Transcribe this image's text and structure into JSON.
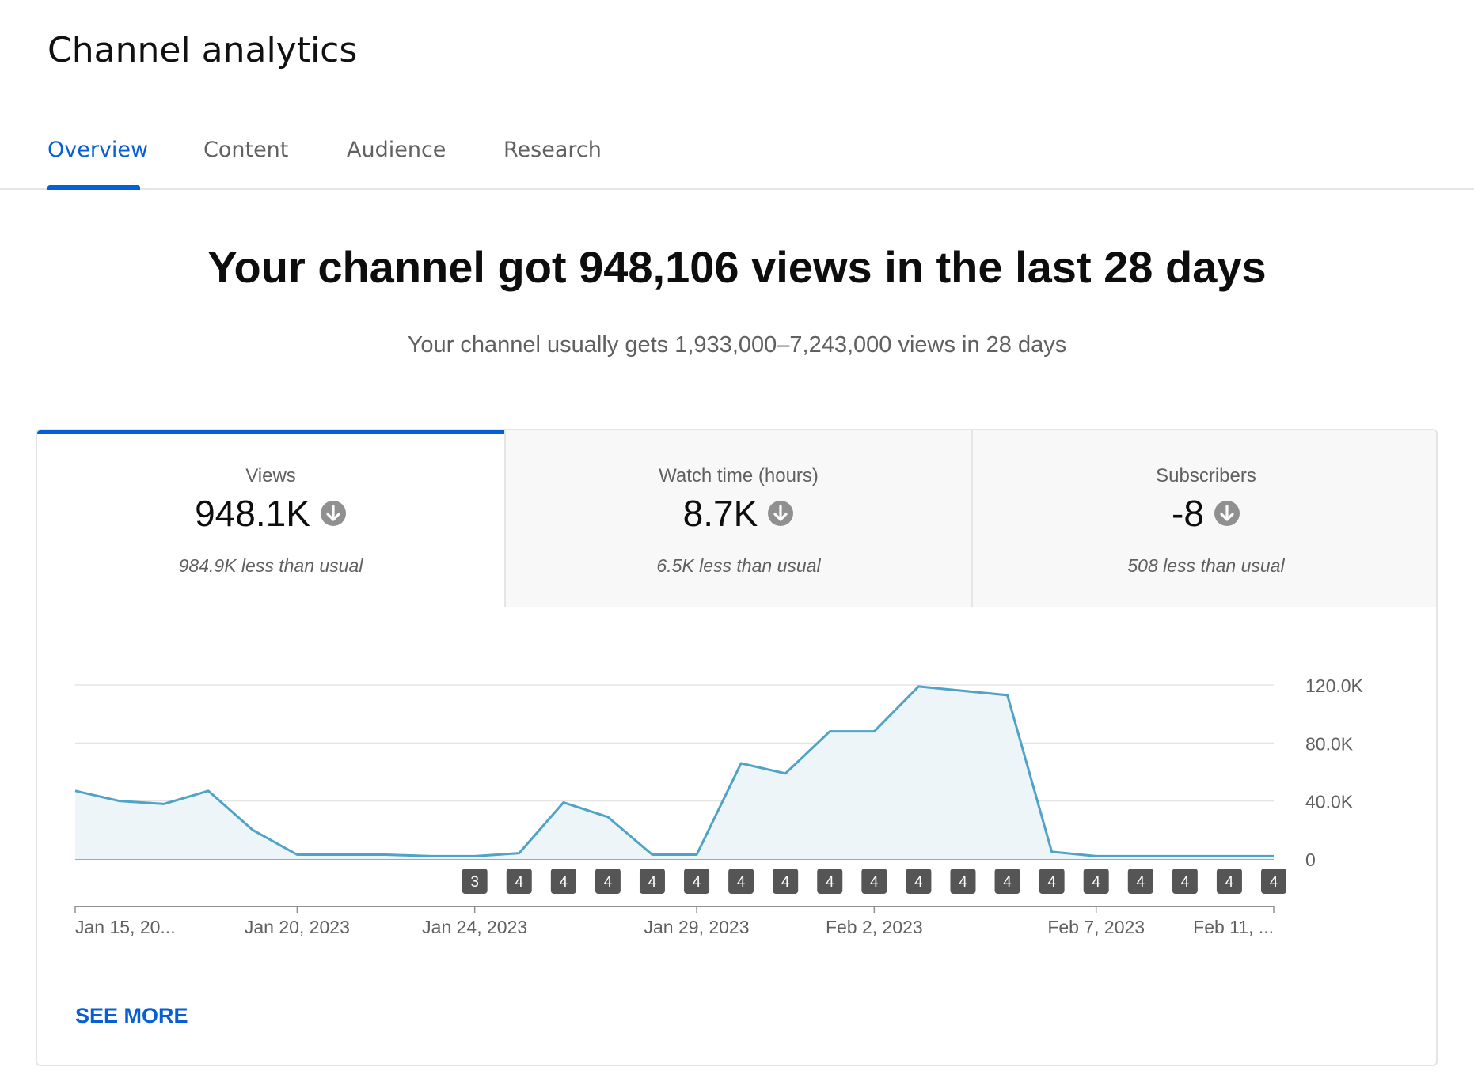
{
  "app": {
    "title": "Channel analytics"
  },
  "tabs": [
    {
      "label": "Overview",
      "active": true
    },
    {
      "label": "Content",
      "active": false
    },
    {
      "label": "Audience",
      "active": false
    },
    {
      "label": "Research",
      "active": false
    }
  ],
  "summary": {
    "headline": "Your channel got 948,106 views in the last 28 days",
    "subheadline": "Your channel usually gets 1,933,000–7,243,000 views in 28 days"
  },
  "metrics": [
    {
      "label": "Views",
      "value": "948.1K",
      "trend_icon": "arrow-down-circle-icon",
      "compare": "984.9K less than usual",
      "active": true
    },
    {
      "label": "Watch time (hours)",
      "value": "8.7K",
      "trend_icon": "arrow-down-circle-icon",
      "compare": "6.5K less than usual",
      "active": false
    },
    {
      "label": "Subscribers",
      "value": "-8",
      "trend_icon": "arrow-down-circle-icon",
      "compare": "508 less than usual",
      "active": false
    }
  ],
  "chart_data": {
    "type": "area",
    "series": [
      {
        "values": [
          47000,
          40000,
          38000,
          47000,
          20000,
          3000,
          3000,
          3000,
          2000,
          2000,
          4000,
          39000,
          29000,
          3000,
          3000,
          66000,
          59000,
          88000,
          88000,
          119000,
          116000,
          113000,
          5000,
          2000,
          2000,
          2000,
          2000,
          2000
        ]
      }
    ],
    "ylim": [
      0,
      120000
    ],
    "y_ticks": [
      "120.0K",
      "80.0K",
      "40.0K",
      "0"
    ],
    "y_tick_values": [
      120000,
      80000,
      40000,
      0
    ],
    "x_tick_labels": [
      {
        "index": 0,
        "label": "Jan 15, 20..."
      },
      {
        "index": 5,
        "label": "Jan 20, 2023"
      },
      {
        "index": 9,
        "label": "Jan 24, 2023"
      },
      {
        "index": 14,
        "label": "Jan 29, 2023"
      },
      {
        "index": 18,
        "label": "Feb 2, 2023"
      },
      {
        "index": 23,
        "label": "Feb 7, 2023"
      },
      {
        "index": 27,
        "label": "Feb 11, ..."
      }
    ],
    "markers": [
      {
        "index": 9,
        "label": "3"
      },
      {
        "index": 10,
        "label": "4"
      },
      {
        "index": 11,
        "label": "4"
      },
      {
        "index": 12,
        "label": "4"
      },
      {
        "index": 13,
        "label": "4"
      },
      {
        "index": 14,
        "label": "4"
      },
      {
        "index": 15,
        "label": "4"
      },
      {
        "index": 16,
        "label": "4"
      },
      {
        "index": 17,
        "label": "4"
      },
      {
        "index": 18,
        "label": "4"
      },
      {
        "index": 19,
        "label": "4"
      },
      {
        "index": 20,
        "label": "4"
      },
      {
        "index": 21,
        "label": "4"
      },
      {
        "index": 22,
        "label": "4"
      },
      {
        "index": 23,
        "label": "4"
      },
      {
        "index": 24,
        "label": "4"
      },
      {
        "index": 25,
        "label": "4"
      },
      {
        "index": 26,
        "label": "4"
      },
      {
        "index": 27,
        "label": "4"
      }
    ],
    "grid": true,
    "colors": {
      "line": "#4fa3c7",
      "fill": "#edf5f9",
      "grid": "#e0e0e0",
      "marker_bg": "#555555"
    }
  },
  "actions": {
    "see_more": "SEE MORE"
  },
  "colors": {
    "accent": "#065fd4",
    "text_secondary": "#606060"
  }
}
